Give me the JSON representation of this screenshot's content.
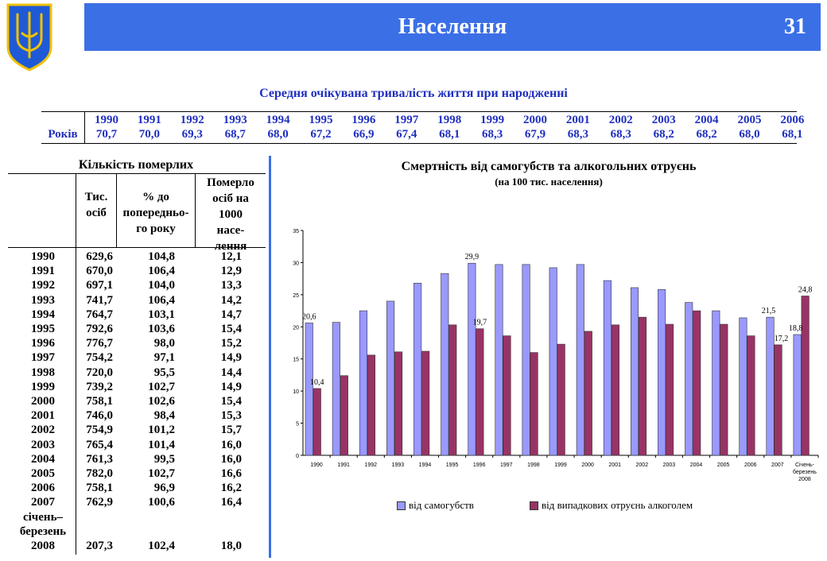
{
  "header": {
    "title": "Населення",
    "page": "31"
  },
  "life_expectancy": {
    "title": "Середня очікувана тривалість життя при народженні",
    "row_label": "Років",
    "years": [
      "1990",
      "1991",
      "1992",
      "1993",
      "1994",
      "1995",
      "1996",
      "1997",
      "1998",
      "1999",
      "2000",
      "2001",
      "2002",
      "2003",
      "2004",
      "2005",
      "2006"
    ],
    "values": [
      "70,7",
      "70,0",
      "69,3",
      "68,7",
      "68,0",
      "67,2",
      "66,9",
      "67,4",
      "68,1",
      "68,3",
      "67,9",
      "68,3",
      "68,3",
      "68,2",
      "68,2",
      "68,0",
      "68,1"
    ]
  },
  "deaths": {
    "title": "Кількість померлих",
    "headers": {
      "col1_line1": "Тис.",
      "col1_line2": "осіб",
      "col2_line1": "% до",
      "col2_line2": "попередньо-",
      "col2_line3": "го року",
      "col3_line1": "Померло",
      "col3_line2": "осіб на",
      "col3_line3": "1000",
      "col3_line4": "насе-",
      "col3_line5": "лення"
    },
    "rows": [
      {
        "year": "1990",
        "a": "629,6",
        "b": "104,8",
        "c": "12,1"
      },
      {
        "year": "1991",
        "a": "670,0",
        "b": "106,4",
        "c": "12,9"
      },
      {
        "year": "1992",
        "a": "697,1",
        "b": "104,0",
        "c": "13,3"
      },
      {
        "year": "1993",
        "a": "741,7",
        "b": "106,4",
        "c": "14,2"
      },
      {
        "year": "1994",
        "a": "764,7",
        "b": "103,1",
        "c": "14,7"
      },
      {
        "year": "1995",
        "a": "792,6",
        "b": "103,6",
        "c": "15,4"
      },
      {
        "year": "1996",
        "a": "776,7",
        "b": "98,0",
        "c": "15,2"
      },
      {
        "year": "1997",
        "a": "754,2",
        "b": "97,1",
        "c": "14,9"
      },
      {
        "year": "1998",
        "a": "720,0",
        "b": "95,5",
        "c": "14,4"
      },
      {
        "year": "1999",
        "a": "739,2",
        "b": "102,7",
        "c": "14,9"
      },
      {
        "year": "2000",
        "a": "758,1",
        "b": "102,6",
        "c": "15,4"
      },
      {
        "year": "2001",
        "a": "746,0",
        "b": "98,4",
        "c": "15,3"
      },
      {
        "year": "2002",
        "a": "754,9",
        "b": "101,2",
        "c": "15,7"
      },
      {
        "year": "2003",
        "a": "765,4",
        "b": "101,4",
        "c": "16,0"
      },
      {
        "year": "2004",
        "a": "761,3",
        "b": "99,5",
        "c": "16,0"
      },
      {
        "year": "2005",
        "a": "782,0",
        "b": "102,7",
        "c": "16,6"
      },
      {
        "year": "2006",
        "a": "758,1",
        "b": "96,9",
        "c": "16,2"
      },
      {
        "year": "2007",
        "a": "762,9",
        "b": "100,6",
        "c": "16,4"
      },
      {
        "year": "січень–",
        "a": "",
        "b": "",
        "c": ""
      },
      {
        "year": "березень",
        "a": "",
        "b": "",
        "c": ""
      },
      {
        "year": "2008",
        "a": "207,3",
        "b": "102,4",
        "c": "18,0"
      }
    ]
  },
  "chart_data": {
    "type": "bar",
    "title": "Смертність від самогубств та алкогольних отруєнь",
    "subtitle": "(на 100 тис. населення)",
    "categories": [
      "1990",
      "1991",
      "1992",
      "1993",
      "1994",
      "1995",
      "1996",
      "1997",
      "1998",
      "1999",
      "2000",
      "2001",
      "2002",
      "2003",
      "2004",
      "2005",
      "2006",
      "2007",
      "січень-березень 2008"
    ],
    "category_label_lines": [
      [
        "1990"
      ],
      [
        "1991"
      ],
      [
        "1992"
      ],
      [
        "1993"
      ],
      [
        "1994"
      ],
      [
        "1995"
      ],
      [
        "1996"
      ],
      [
        "1997"
      ],
      [
        "1998"
      ],
      [
        "1999"
      ],
      [
        "2000"
      ],
      [
        "2001"
      ],
      [
        "2002"
      ],
      [
        "2003"
      ],
      [
        "2004"
      ],
      [
        "2005"
      ],
      [
        "2006"
      ],
      [
        "2007"
      ],
      [
        "Січень-",
        "березень",
        "2008"
      ]
    ],
    "series": [
      {
        "name": "від самогубств",
        "color": "#9999ff",
        "values": [
          20.6,
          20.7,
          22.5,
          24.0,
          26.8,
          28.3,
          29.9,
          29.7,
          29.7,
          29.2,
          29.7,
          27.2,
          26.1,
          25.8,
          23.8,
          22.5,
          21.4,
          21.5,
          18.8
        ]
      },
      {
        "name": "від випадкових отруєнь алкоголем",
        "color": "#993366",
        "values": [
          10.4,
          12.4,
          15.6,
          16.1,
          16.2,
          20.3,
          19.7,
          18.6,
          16.0,
          17.3,
          19.3,
          20.3,
          21.5,
          20.4,
          22.5,
          20.4,
          18.6,
          17.2,
          24.8
        ]
      }
    ],
    "data_labels": [
      {
        "series": 0,
        "index": 0,
        "text": "20,6"
      },
      {
        "series": 1,
        "index": 0,
        "text": "10,4"
      },
      {
        "series": 0,
        "index": 6,
        "text": "29,9"
      },
      {
        "series": 1,
        "index": 6,
        "text": "19,7"
      },
      {
        "series": 0,
        "index": 17,
        "text": "21,5"
      },
      {
        "series": 1,
        "index": 17,
        "text": "17,2"
      },
      {
        "series": 0,
        "index": 18,
        "text": "18,8"
      },
      {
        "series": 1,
        "index": 18,
        "text": "24,8"
      }
    ],
    "ylim": [
      0,
      35
    ],
    "yticks": [
      0,
      5,
      10,
      15,
      20,
      25,
      30,
      35
    ],
    "grid": false,
    "legend": "bottom"
  }
}
